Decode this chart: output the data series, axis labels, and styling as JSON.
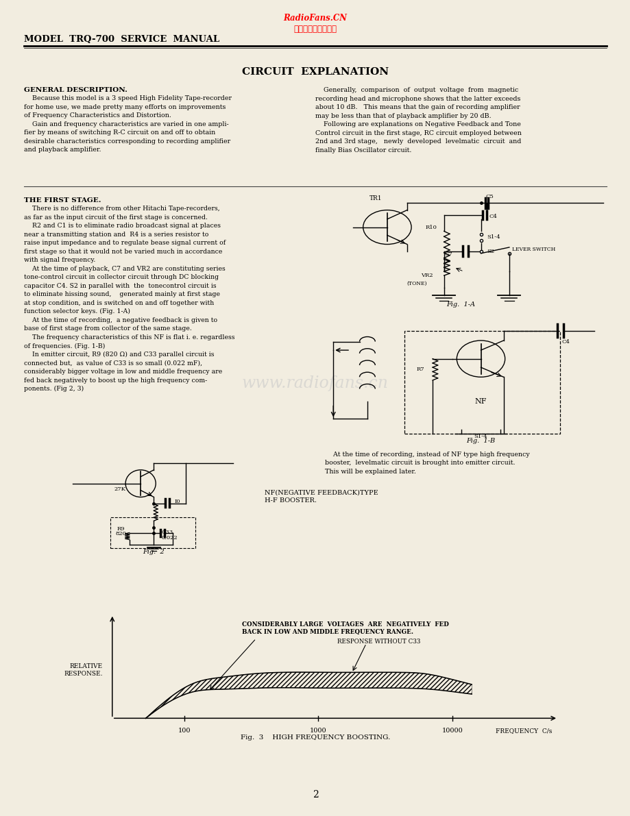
{
  "bg_color": "#f2ede0",
  "page_width": 9.2,
  "page_height": 11.91,
  "dpi": 100,
  "header_watermark_line1": "RadioFans.CN",
  "header_watermark_line2": "收音机爱好者资料库",
  "header_title": "MODEL  TRQ-700  SERVICE  MANUAL",
  "section_title": "CIRCUIT  EXPLANATION",
  "general_desc_heading": "GENERAL DESCRIPTION.",
  "general_desc_left": "    Because this model is a 3 speed High Fidelity Tape-recorder\nfor home use, we made pretty many efforts on improvements\nof Frequency Characteristics and Distortion.\n    Gain and frequency characteristics are varied in one ampli-\nfier by means of switching R-C circuit on and off to obtain\ndesirable characteristics corresponding to recording amplifier\nand playback amplifier.",
  "general_desc_right": "    Generally,  comparison  of  output  voltage  from  magnetic\nrecording head and microphone shows that the latter exceeds\nabout 10 dB.   This means that the gain of recording amplifier\nmay be less than that of playback amplifier by 20 dB.\n    Following are explanations on Negative Feedback and Tone\nControl circuit in the first stage, RC circuit employed between\n2nd and 3rd stage,   newly  developed  levelmatic  circuit  and\nfinally Bias Oscillator circuit.",
  "first_stage_heading": "THE FIRST STAGE.",
  "first_stage_text": "    There is no difference from other Hitachi Tape-recorders,\nas far as the input circuit of the first stage is concerned.\n    R2 and C1 is to eliminate radio broadcast signal at places\nnear a transmitting station and  R4 is a series resistor to\nraise input impedance and to regulate bease signal current of\nfirst stage so that it would not be varied much in accordance\nwith signal frequency.\n    At the time of playback, C7 and VR2 are constituting series\ntone-control circuit in collector circuit through DC blocking\ncapacitor C4. S2 in parallel with  the  tonecontrol circuit is\nto eliminate hissing sound,    generated mainly at first stage\nat stop condition, and is switched on and off together with\nfunction selector keys. (Fig. 1-A)\n    At the time of recording,  a negative feedback is given to\nbase of first stage from collector of the same stage.\n    The frequency characteristics of this NF is flat i. e. regardless\nof frequencies. (Fig. 1-B)\n    In emitter circuit, R9 (820 Ω) and C33 parallel circuit is\nconnected but,  as value of C33 is so small (0.022 mF),\nconsiderably bigger voltage in low and middle frequency are\nfed back negatively to boost up the high frequency com-\nponents. (Fig 2, 3)",
  "right_bottom_text": "    At the time of recording, instead of NF type high frequency\nbooster,  levelmatic circuit is brought into emitter circuit.\nThis will be explained later.",
  "fig3_label": "Fig.  3    HIGH FREQUENCY BOOSTING.",
  "fig2_label": "Fig.  2",
  "fig1a_label": "Fig.  1-A",
  "fig1b_label": "Fig.  1-B",
  "fig2_caption": "NF(NEGATIVE FEEDBACK)TYPE\nH-F BOOSTER.",
  "page_number": "2",
  "watermark_text": "www.radiofans.cn",
  "relative_response_label": "RELATIVE\nRESPONSE.",
  "freq_label": "FREQUENCY  C/s",
  "freq_ticks": [
    "100",
    "1000",
    "10000"
  ],
  "large_voltage_text": "CONSIDERABLY LARGE  VOLTAGES  ARE  NEGATIVELY  FED\nBACK IN LOW AND MIDDLE FREQUENCY RANGE.",
  "response_without_c33": "RESPONSE WITHOUT C33"
}
